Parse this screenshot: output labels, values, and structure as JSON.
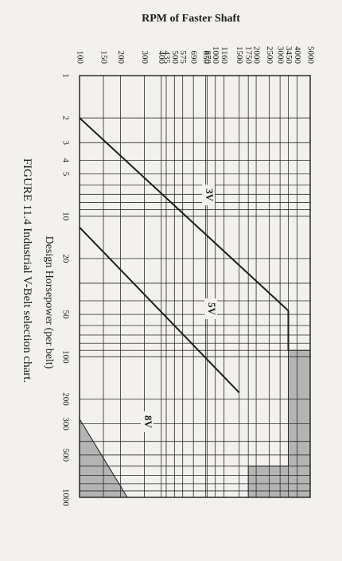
{
  "chart_data": {
    "type": "line",
    "title": "RPM of Faster Shaft",
    "x_label": "Design Horsepower (per belt)",
    "caption": "FIGURE 11.4 Industrial V-Belt selection chart.",
    "xscale": "log",
    "xlim": [
      1,
      1000
    ],
    "xticks": [
      1,
      2,
      3,
      4,
      5,
      10,
      20,
      50,
      100,
      200,
      300,
      500,
      1000
    ],
    "x_gridlines": [
      1,
      2,
      3,
      4,
      5,
      6,
      7,
      8,
      9,
      10,
      20,
      30,
      40,
      50,
      60,
      70,
      80,
      90,
      100,
      200,
      300,
      400,
      500,
      600,
      700,
      800,
      900,
      1000
    ],
    "yscale": "log",
    "ylim": [
      100,
      5000
    ],
    "yticks": [
      100,
      150,
      200,
      300,
      400,
      435,
      500,
      575,
      690,
      850,
      870,
      1000,
      1160,
      1500,
      1750,
      2000,
      2500,
      3000,
      3450,
      4000,
      5000
    ],
    "grid": true,
    "line_color": "#1e1e1e",
    "shade_color": "#b4b4b4",
    "region_labels": [
      "3V",
      "5V",
      "8V"
    ],
    "boundaries": [
      {
        "x": [
          2,
          47,
          90
        ],
        "y": [
          100,
          3450,
          3450
        ]
      },
      {
        "x": [
          12,
          180
        ],
        "y": [
          100,
          1500
        ]
      }
    ],
    "shaded_areas": [
      {
        "x": [
          90,
          90,
          1000,
          1000,
          600,
          600
        ],
        "y": [
          3450,
          5000,
          5000,
          1750,
          1750,
          3450
        ]
      },
      {
        "x": [
          277,
          1000,
          1000
        ],
        "y": [
          100,
          225,
          100
        ]
      }
    ]
  }
}
